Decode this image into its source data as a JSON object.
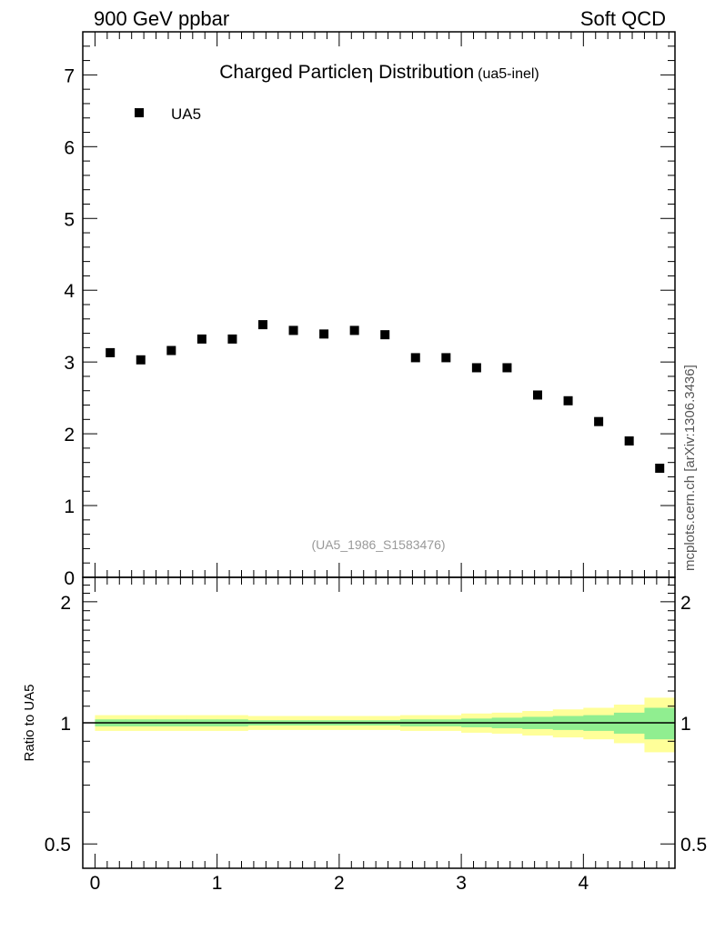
{
  "header": {
    "left": "900 GeV ppbar",
    "right": "Soft QCD"
  },
  "side_label": "mcplots.cern.ch [arXiv:1306.3436]",
  "chart_data": [
    {
      "type": "scatter",
      "title": "Charged Particle",
      "title_symbol": "η",
      "title_rest": " Distribution",
      "title_suffix": "(ua5-inel)",
      "analysis_id": "(UA5_1986_S1583476)",
      "xlim": [
        -0.1,
        4.75
      ],
      "ylim": [
        0,
        7.6
      ],
      "y_ticks": [
        0,
        1,
        2,
        3,
        4,
        5,
        6,
        7
      ],
      "y_tick_labels": [
        "0",
        "1",
        "2",
        "3",
        "4",
        "5",
        "6",
        "7"
      ],
      "legend_position": "top-left",
      "series": [
        {
          "name": "UA5",
          "color": "#000000",
          "marker": "square",
          "x": [
            0.125,
            0.375,
            0.625,
            0.875,
            1.125,
            1.375,
            1.625,
            1.875,
            2.125,
            2.375,
            2.625,
            2.875,
            3.125,
            3.375,
            3.625,
            3.875,
            4.125,
            4.375,
            4.625
          ],
          "y": [
            3.13,
            3.03,
            3.16,
            3.32,
            3.32,
            3.52,
            3.44,
            3.39,
            3.44,
            3.38,
            3.06,
            3.06,
            2.92,
            2.92,
            2.54,
            2.46,
            2.17,
            1.9,
            1.52
          ]
        }
      ]
    },
    {
      "type": "area",
      "ylabel": "Ratio to UA5",
      "y_scale": "log",
      "xlim": [
        -0.1,
        4.75
      ],
      "ylim": [
        0.435,
        2.3
      ],
      "x_ticks": [
        0,
        1,
        2,
        3,
        4
      ],
      "x_tick_labels": [
        "0",
        "1",
        "2",
        "3",
        "4"
      ],
      "y_ticks": [
        0.5,
        1,
        2
      ],
      "y_tick_labels": [
        "0.5",
        "1",
        "2"
      ],
      "reference_line": 1,
      "bins": [
        0,
        0.25,
        0.5,
        0.75,
        1.0,
        1.25,
        1.5,
        1.75,
        2.0,
        2.25,
        2.5,
        2.75,
        3.0,
        3.25,
        3.5,
        3.75,
        4.0,
        4.25,
        4.5,
        4.75
      ],
      "band_inner": {
        "name": "stat",
        "color": "#90ee90",
        "lo": [
          0.98,
          0.98,
          0.98,
          0.98,
          0.98,
          0.985,
          0.985,
          0.985,
          0.985,
          0.985,
          0.98,
          0.98,
          0.975,
          0.97,
          0.965,
          0.96,
          0.955,
          0.94,
          0.91
        ],
        "hi": [
          1.02,
          1.02,
          1.02,
          1.02,
          1.02,
          1.015,
          1.015,
          1.015,
          1.015,
          1.015,
          1.02,
          1.02,
          1.025,
          1.03,
          1.035,
          1.04,
          1.045,
          1.06,
          1.09
        ]
      },
      "band_outer": {
        "name": "total",
        "color": "#ffff99",
        "lo": [
          0.955,
          0.955,
          0.955,
          0.955,
          0.955,
          0.96,
          0.96,
          0.96,
          0.96,
          0.96,
          0.955,
          0.955,
          0.945,
          0.94,
          0.93,
          0.92,
          0.91,
          0.89,
          0.845
        ],
        "hi": [
          1.045,
          1.045,
          1.045,
          1.045,
          1.045,
          1.04,
          1.04,
          1.04,
          1.04,
          1.04,
          1.045,
          1.045,
          1.055,
          1.06,
          1.07,
          1.08,
          1.09,
          1.11,
          1.155
        ]
      }
    }
  ]
}
